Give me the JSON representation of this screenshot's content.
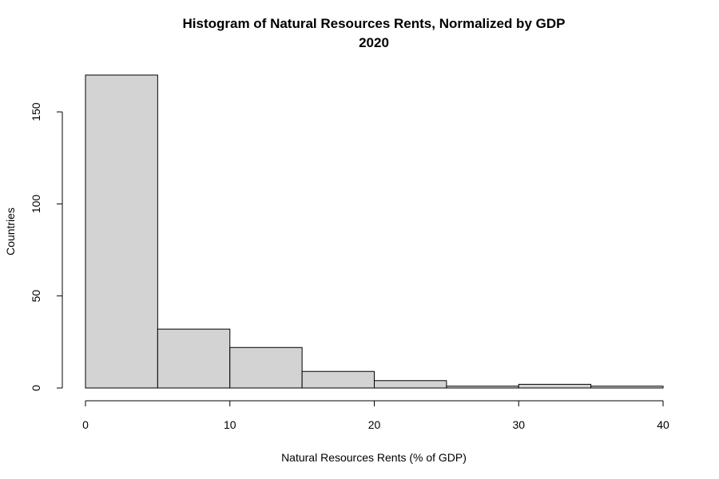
{
  "chart_data": {
    "type": "bar",
    "title": "Histogram of Natural Resources Rents, Normalized by GDP",
    "subtitle": "2020",
    "xlabel": "Natural Resources Rents (% of GDP)",
    "ylabel": "Countries",
    "bins": [
      [
        0,
        5
      ],
      [
        5,
        10
      ],
      [
        10,
        15
      ],
      [
        15,
        20
      ],
      [
        20,
        25
      ],
      [
        25,
        30
      ],
      [
        30,
        35
      ],
      [
        35,
        40
      ]
    ],
    "values": [
      170,
      32,
      22,
      9,
      4,
      1,
      2,
      1
    ],
    "xlim": [
      0,
      40
    ],
    "ylim": [
      0,
      170
    ],
    "xticks": [
      "0",
      "10",
      "20",
      "30",
      "40"
    ],
    "yticks": [
      "0",
      "50",
      "100",
      "150"
    ],
    "bar_color": "#d3d3d3",
    "border_color": "#000000",
    "grid": false
  }
}
